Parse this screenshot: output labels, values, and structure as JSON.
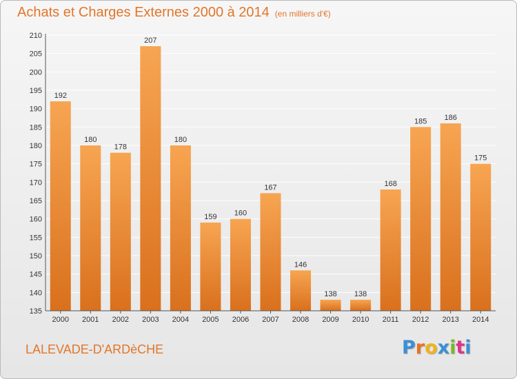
{
  "header": {
    "title": "Achats et Charges Externes 2000 à 2014",
    "unit": "(en milliers d'€)"
  },
  "footer": {
    "commune": "LALEVADE-D'ARDèCHE",
    "logo_letters": [
      "P",
      "r",
      "o",
      "x",
      "i",
      "t",
      "i"
    ],
    "logo_colors": [
      "#3a8fd6",
      "#e8731f",
      "#f2b31b",
      "#3a8fd6",
      "#79b82a",
      "#e0338a",
      "#3a8fd6"
    ]
  },
  "colors": {
    "bar_top": "#f7a552",
    "bar_bottom": "#d9701d",
    "title": "#e2762a",
    "grid": "#ffffff",
    "text": "#333333"
  },
  "chart_data": {
    "type": "bar",
    "title": "Achats et Charges Externes 2000 à 2014",
    "subtitle": "(en milliers d'€)",
    "categories": [
      "2000",
      "2001",
      "2002",
      "2003",
      "2004",
      "2005",
      "2006",
      "2007",
      "2008",
      "2009",
      "2010",
      "2011",
      "2012",
      "2013",
      "2014"
    ],
    "values": [
      192,
      180,
      178,
      207,
      180,
      159,
      160,
      167,
      146,
      138,
      138,
      168,
      185,
      186,
      175
    ],
    "ylim": [
      135,
      210
    ],
    "yticks": [
      135,
      140,
      145,
      150,
      155,
      160,
      165,
      170,
      175,
      180,
      185,
      190,
      195,
      200,
      205,
      210
    ],
    "data_labels": true,
    "grid": true
  }
}
